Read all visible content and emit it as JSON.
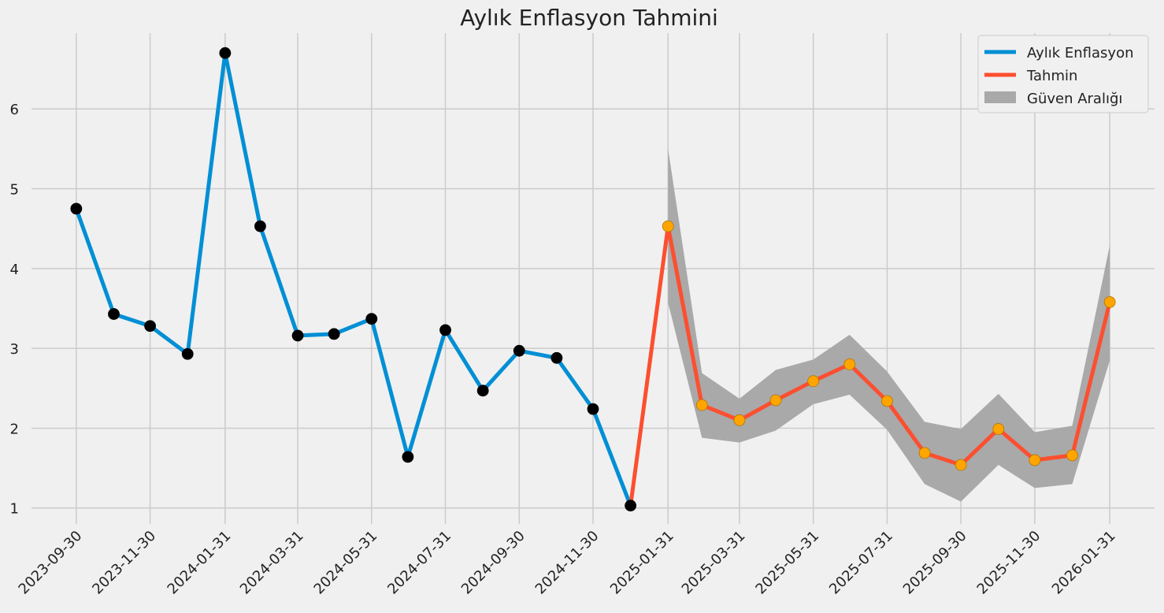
{
  "chart_data": {
    "type": "line",
    "title": "Aylık Enflasyon Tahmini",
    "xlabel": "",
    "ylabel": "",
    "ylim": [
      0.8,
      6.95
    ],
    "xlim": [
      "2023-08-24",
      "2026-03-09"
    ],
    "grid": true,
    "legend_position": "top-right",
    "y_ticks": [
      1,
      2,
      3,
      4,
      5,
      6
    ],
    "x_ticks": [
      "2023-09-30",
      "2023-11-30",
      "2024-01-31",
      "2024-03-31",
      "2024-05-31",
      "2024-07-31",
      "2024-09-30",
      "2024-11-30",
      "2025-01-31",
      "2025-03-31",
      "2025-05-31",
      "2025-07-31",
      "2025-09-30",
      "2025-11-30",
      "2026-01-31"
    ],
    "x_tick_rotation": 45,
    "series": [
      {
        "name": "Aylık Enflasyon",
        "color": "#008fd5",
        "marker_color": "#000000",
        "x": [
          "2023-09-30",
          "2023-10-31",
          "2023-11-30",
          "2023-12-31",
          "2024-01-31",
          "2024-02-29",
          "2024-03-31",
          "2024-04-30",
          "2024-05-31",
          "2024-06-30",
          "2024-07-31",
          "2024-08-31",
          "2024-09-30",
          "2024-10-31",
          "2024-11-30",
          "2024-12-31"
        ],
        "values": [
          4.75,
          3.43,
          3.28,
          2.93,
          6.7,
          4.53,
          3.16,
          3.18,
          3.37,
          1.64,
          3.23,
          2.47,
          2.97,
          2.88,
          2.24,
          1.03
        ]
      },
      {
        "name": "Tahmin",
        "color": "#fc4f30",
        "marker_color": "#ffa500",
        "x": [
          "2025-01-31",
          "2025-02-28",
          "2025-03-31",
          "2025-04-30",
          "2025-05-31",
          "2025-06-30",
          "2025-07-31",
          "2025-08-31",
          "2025-09-30",
          "2025-10-31",
          "2025-11-30",
          "2025-12-31",
          "2026-01-31"
        ],
        "values": [
          4.53,
          2.29,
          2.1,
          2.35,
          2.59,
          2.8,
          2.34,
          1.69,
          1.54,
          1.99,
          1.6,
          1.66,
          3.58
        ]
      }
    ],
    "confidence_interval": {
      "name": "Güven Aralığı",
      "color": "#a9a9a9",
      "x": [
        "2025-01-31",
        "2025-02-28",
        "2025-03-31",
        "2025-04-30",
        "2025-05-31",
        "2025-06-30",
        "2025-07-31",
        "2025-08-31",
        "2025-09-30",
        "2025-10-31",
        "2025-11-30",
        "2025-12-31",
        "2026-01-31"
      ],
      "lower": [
        3.57,
        1.88,
        1.82,
        1.97,
        2.3,
        2.42,
        1.98,
        1.3,
        1.08,
        1.54,
        1.25,
        1.3,
        2.85
      ],
      "upper": [
        5.5,
        2.69,
        2.37,
        2.73,
        2.86,
        3.17,
        2.71,
        2.08,
        1.99,
        2.43,
        1.95,
        2.03,
        4.29
      ]
    },
    "background_color": "#f0f0f0",
    "grid_color": "#cbcbcb"
  }
}
